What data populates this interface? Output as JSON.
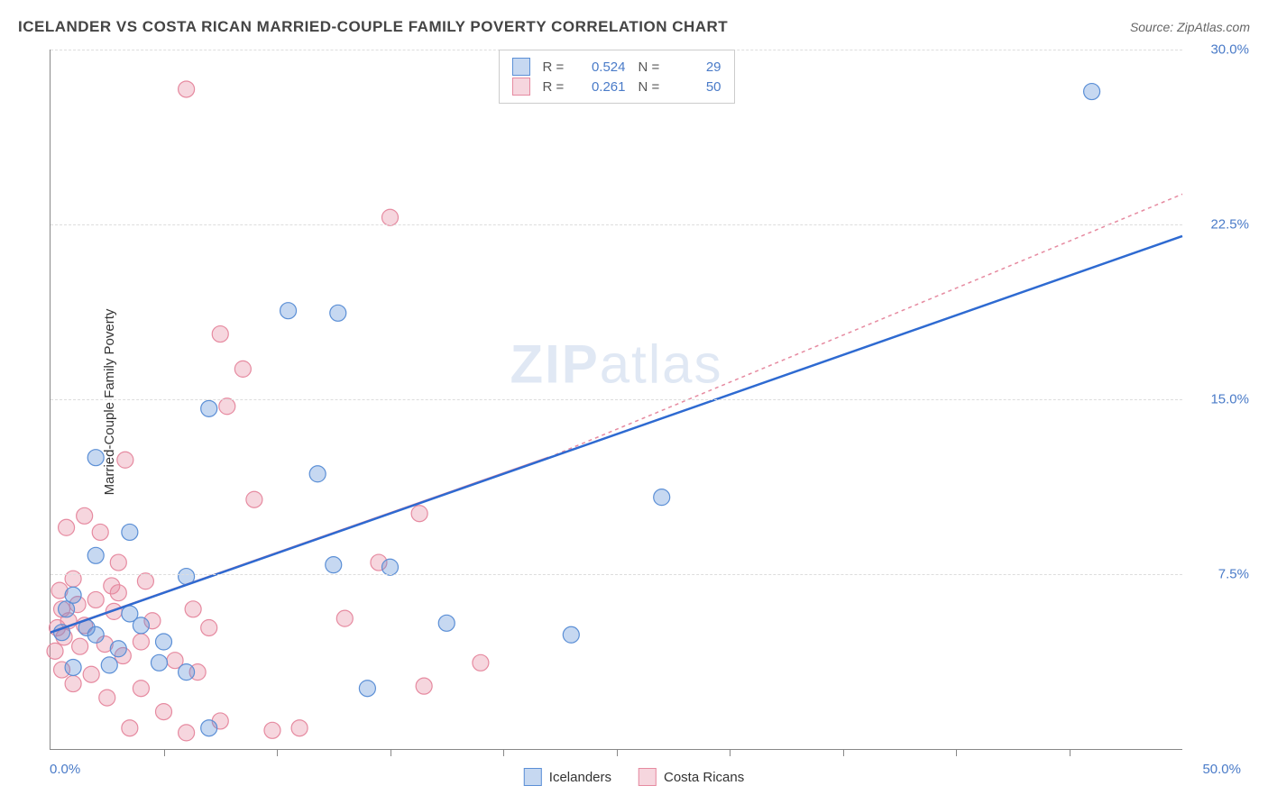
{
  "title": "ICELANDER VS COSTA RICAN MARRIED-COUPLE FAMILY POVERTY CORRELATION CHART",
  "source": "Source: ZipAtlas.com",
  "watermark_bold": "ZIP",
  "watermark_light": "atlas",
  "chart": {
    "type": "scatter",
    "xlim": [
      0,
      50
    ],
    "ylim": [
      0,
      30
    ],
    "x_min_label": "0.0%",
    "x_max_label": "50.0%",
    "ylabel": "Married-Couple Family Poverty",
    "ytick_labels": [
      "7.5%",
      "15.0%",
      "22.5%",
      "30.0%"
    ],
    "ytick_values": [
      7.5,
      15.0,
      22.5,
      30.0
    ],
    "xtick_values": [
      5,
      10,
      15,
      20,
      25,
      30,
      35,
      40,
      45
    ],
    "grid_color": "#dddddd",
    "axis_color": "#888888",
    "background_color": "#ffffff",
    "marker_radius": 9,
    "marker_fill_opacity": 0.35,
    "marker_stroke_width": 1.2,
    "trend_line_width": 2.5,
    "series": [
      {
        "name": "Icelanders",
        "color": "#5b8fd6",
        "fill": "rgba(91,143,214,0.35)",
        "R": "0.524",
        "N": "29",
        "trend": {
          "x1": 0,
          "y1": 5.0,
          "x2": 50,
          "y2": 22.0,
          "dash": "none"
        },
        "points": [
          [
            46.0,
            28.2
          ],
          [
            10.5,
            18.8
          ],
          [
            12.7,
            18.7
          ],
          [
            7.0,
            14.6
          ],
          [
            2.0,
            12.5
          ],
          [
            27.0,
            10.8
          ],
          [
            11.8,
            11.8
          ],
          [
            15.0,
            7.8
          ],
          [
            12.5,
            7.9
          ],
          [
            3.5,
            9.3
          ],
          [
            2.0,
            8.3
          ],
          [
            1.0,
            6.6
          ],
          [
            0.7,
            6.0
          ],
          [
            1.0,
            3.5
          ],
          [
            2.6,
            3.6
          ],
          [
            0.5,
            5.0
          ],
          [
            1.6,
            5.2
          ],
          [
            4.0,
            5.3
          ],
          [
            5.0,
            4.6
          ],
          [
            4.8,
            3.7
          ],
          [
            6.0,
            3.3
          ],
          [
            3.5,
            5.8
          ],
          [
            23.0,
            4.9
          ],
          [
            17.5,
            5.4
          ],
          [
            14.0,
            2.6
          ],
          [
            7.0,
            0.9
          ],
          [
            6.0,
            7.4
          ],
          [
            3.0,
            4.3
          ],
          [
            2.0,
            4.9
          ]
        ]
      },
      {
        "name": "Costa Ricans",
        "color": "#e68aa0",
        "fill": "rgba(230,138,160,0.35)",
        "R": "0.261",
        "N": "50",
        "trend": {
          "x1": 0,
          "y1": 5.0,
          "x2": 22,
          "y2": 12.5,
          "dash": "none"
        },
        "trend_ext": {
          "x1": 22,
          "y1": 12.5,
          "x2": 50,
          "y2": 23.8,
          "dash": "4 4"
        },
        "points": [
          [
            6.0,
            28.3
          ],
          [
            15.0,
            22.8
          ],
          [
            7.5,
            17.8
          ],
          [
            8.5,
            16.3
          ],
          [
            7.8,
            14.7
          ],
          [
            3.3,
            12.4
          ],
          [
            0.7,
            9.5
          ],
          [
            1.5,
            10.0
          ],
          [
            2.2,
            9.3
          ],
          [
            3.0,
            8.0
          ],
          [
            4.2,
            7.2
          ],
          [
            1.0,
            7.3
          ],
          [
            0.4,
            6.8
          ],
          [
            0.5,
            6.0
          ],
          [
            1.2,
            6.2
          ],
          [
            2.0,
            6.4
          ],
          [
            2.8,
            5.9
          ],
          [
            1.5,
            5.3
          ],
          [
            0.8,
            5.5
          ],
          [
            0.3,
            5.2
          ],
          [
            0.6,
            4.8
          ],
          [
            1.3,
            4.4
          ],
          [
            2.4,
            4.5
          ],
          [
            3.2,
            4.0
          ],
          [
            4.0,
            4.6
          ],
          [
            4.5,
            5.5
          ],
          [
            5.5,
            3.8
          ],
          [
            6.5,
            3.3
          ],
          [
            4.0,
            2.6
          ],
          [
            2.5,
            2.2
          ],
          [
            1.0,
            2.8
          ],
          [
            0.5,
            3.4
          ],
          [
            0.2,
            4.2
          ],
          [
            5.0,
            1.6
          ],
          [
            3.5,
            0.9
          ],
          [
            6.0,
            0.7
          ],
          [
            7.5,
            1.2
          ],
          [
            9.8,
            0.8
          ],
          [
            11.0,
            0.9
          ],
          [
            9.0,
            10.7
          ],
          [
            16.3,
            10.1
          ],
          [
            14.5,
            8.0
          ],
          [
            19.0,
            3.7
          ],
          [
            16.5,
            2.7
          ],
          [
            13.0,
            5.6
          ],
          [
            6.3,
            6.0
          ],
          [
            7.0,
            5.2
          ],
          [
            3.0,
            6.7
          ],
          [
            1.8,
            3.2
          ],
          [
            2.7,
            7.0
          ]
        ]
      }
    ],
    "legend_top_labels": {
      "R": "R =",
      "N": "N ="
    },
    "legend_bottom": [
      "Icelanders",
      "Costa Ricans"
    ]
  }
}
